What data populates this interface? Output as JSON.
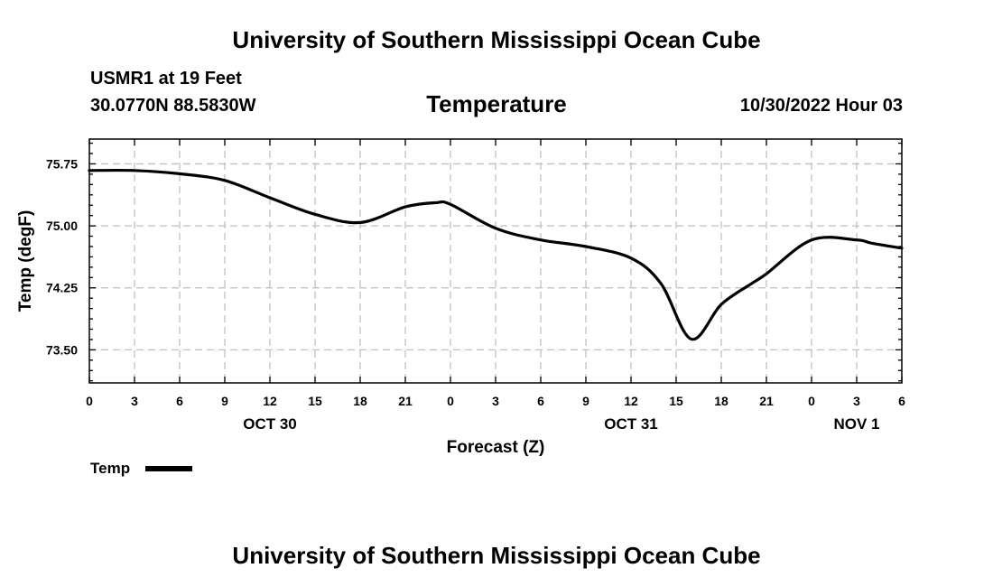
{
  "header": {
    "title": "University of Southern Mississippi Ocean Cube",
    "station": "USMR1 at 19 Feet",
    "coords": "30.0770N  88.5830W",
    "variable": "Temperature",
    "datetime": "10/30/2022 Hour 03"
  },
  "footer": {
    "title": "University of Southern Mississippi Ocean Cube"
  },
  "legend": {
    "label": "Temp"
  },
  "colors": {
    "line": "#000000",
    "grid": "#bfbfbf",
    "background": "#ffffff"
  },
  "chart_data": {
    "type": "line",
    "title": "Temperature",
    "xlabel": "Forecast (Z)",
    "ylabel": "Temp (degF)",
    "xlim": [
      0,
      54
    ],
    "ylim": [
      73.1,
      76.05
    ],
    "grid": true,
    "x_ticks": [
      0,
      3,
      6,
      9,
      12,
      15,
      18,
      21,
      24,
      27,
      30,
      33,
      36,
      39,
      42,
      45,
      48,
      51,
      54
    ],
    "x_tick_labels": [
      "0",
      "3",
      "6",
      "9",
      "12",
      "15",
      "18",
      "21",
      "0",
      "3",
      "6",
      "9",
      "12",
      "15",
      "18",
      "21",
      "0",
      "3",
      "6"
    ],
    "y_ticks": [
      73.5,
      74.25,
      75.0,
      75.75
    ],
    "y_tick_labels": [
      "73.50",
      "74.25",
      "75.00",
      "75.75"
    ],
    "date_labels": [
      {
        "x": 12,
        "label": "OCT 30"
      },
      {
        "x": 36,
        "label": "OCT 31"
      },
      {
        "x": 51,
        "label": "NOV 1"
      }
    ],
    "series": [
      {
        "name": "Temp",
        "x": [
          0,
          3,
          6,
          9,
          12,
          15,
          18,
          21,
          23,
          24,
          27,
          30,
          33,
          36,
          38,
          40,
          42,
          44,
          45,
          48,
          51,
          52,
          54
        ],
        "values": [
          75.67,
          75.67,
          75.63,
          75.55,
          75.34,
          75.14,
          75.04,
          75.23,
          75.28,
          75.26,
          74.97,
          74.83,
          74.75,
          74.61,
          74.3,
          73.63,
          74.05,
          74.3,
          74.42,
          74.83,
          74.83,
          74.79,
          74.73
        ]
      }
    ]
  }
}
